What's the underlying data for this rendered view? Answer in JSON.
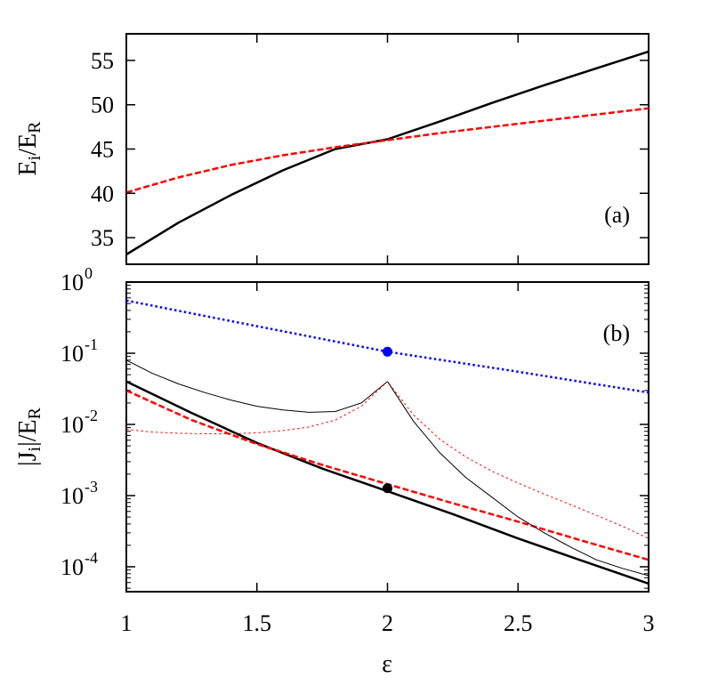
{
  "chart_data": [
    {
      "type": "line",
      "panel_label": "(a)",
      "xlabel": "ε",
      "ylabel_main": "E",
      "ylabel_sub": "i",
      "ylabel_sep": "/E",
      "ylabel_sub2": "R",
      "xlim": [
        1,
        3
      ],
      "ylim": [
        32,
        58
      ],
      "yticks": [
        35,
        40,
        45,
        50,
        55
      ],
      "xticks": [
        1,
        1.5,
        2,
        2.5,
        3
      ],
      "scale": "linear",
      "grid": false,
      "series": [
        {
          "style": "solid",
          "color": "#000000",
          "width": 2.5,
          "x": [
            1.0,
            1.2,
            1.4,
            1.6,
            1.8,
            2.0,
            2.2,
            2.4,
            2.6,
            2.8,
            3.0
          ],
          "y": [
            33.1,
            36.7,
            39.8,
            42.6,
            45.0,
            46.1,
            48.1,
            50.2,
            52.2,
            54.1,
            56.0
          ]
        },
        {
          "style": "dashed",
          "color": "#ff0000",
          "width": 2.5,
          "x": [
            1.0,
            1.2,
            1.4,
            1.6,
            1.8,
            2.0,
            2.2,
            2.4,
            2.6,
            2.8,
            3.0
          ],
          "y": [
            40.1,
            41.8,
            43.2,
            44.3,
            45.2,
            46.0,
            46.8,
            47.5,
            48.2,
            48.9,
            49.6
          ]
        }
      ]
    },
    {
      "type": "line",
      "panel_label": "(b)",
      "xlabel": "ε",
      "ylabel_main": "|J",
      "ylabel_sub": "i",
      "ylabel_sep": "|/E",
      "ylabel_sub2": "R",
      "xlim": [
        1,
        3
      ],
      "ylim_log10": [
        -4.35,
        0
      ],
      "xticks": [
        1,
        1.5,
        2,
        2.5,
        3
      ],
      "xtick_labels": [
        "1",
        "1.5",
        "2",
        "2.5",
        "3"
      ],
      "ytick_mantissa": "10",
      "ytick_exponents": [
        "0",
        "-1",
        "-2",
        "-3",
        "-4"
      ],
      "ytick_values_log10": [
        0,
        -1,
        -2,
        -3,
        -4
      ],
      "scale": "log",
      "grid": false,
      "series": [
        {
          "style": "dotted",
          "color": "#0000ff",
          "width": 2.5,
          "x": [
            1.0,
            1.5,
            2.0,
            2.5,
            3.0
          ],
          "y": [
            0.55,
            0.24,
            0.105,
            0.055,
            0.028
          ]
        },
        {
          "style": "solid",
          "color": "#000000",
          "width": 2.5,
          "x": [
            1.0,
            1.25,
            1.5,
            1.75,
            2.0,
            2.25,
            2.5,
            2.75,
            3.0
          ],
          "y": [
            0.04,
            0.0145,
            0.0055,
            0.0024,
            0.00115,
            0.00055,
            0.00025,
            0.00012,
            5.8e-05
          ]
        },
        {
          "style": "dashed",
          "color": "#ff0000",
          "width": 2.5,
          "x": [
            1.0,
            1.25,
            1.5,
            1.75,
            2.0,
            2.25,
            2.5,
            2.75,
            3.0
          ],
          "y": [
            0.03,
            0.0115,
            0.0053,
            0.0027,
            0.00145,
            0.00078,
            0.00043,
            0.00023,
            0.000125
          ]
        },
        {
          "style": "thin-solid",
          "color": "#000000",
          "width": 1,
          "x": [
            1.0,
            1.1,
            1.2,
            1.3,
            1.4,
            1.5,
            1.6,
            1.7,
            1.8,
            1.9,
            2.0,
            2.1,
            2.2,
            2.3,
            2.4,
            2.5,
            2.6,
            2.7,
            2.8,
            2.9,
            3.0
          ],
          "y": [
            0.08,
            0.052,
            0.037,
            0.028,
            0.022,
            0.018,
            0.016,
            0.0148,
            0.0152,
            0.02,
            0.04,
            0.011,
            0.004,
            0.0018,
            0.00095,
            0.0005,
            0.0003,
            0.00019,
            0.000125,
            9.5e-05,
            7.5e-05
          ]
        },
        {
          "style": "thin-dotted",
          "color": "#ff0000",
          "width": 1,
          "x": [
            1.0,
            1.1,
            1.2,
            1.3,
            1.4,
            1.5,
            1.6,
            1.7,
            1.8,
            1.9,
            2.0,
            2.1,
            2.2,
            2.3,
            2.4,
            2.5,
            2.6,
            2.7,
            2.8,
            2.9,
            3.0
          ],
          "y": [
            0.0085,
            0.0078,
            0.0075,
            0.0074,
            0.0074,
            0.0076,
            0.0082,
            0.0092,
            0.0115,
            0.018,
            0.04,
            0.0135,
            0.0062,
            0.0035,
            0.0022,
            0.0015,
            0.00105,
            0.00075,
            0.00053,
            0.00037,
            0.00025
          ]
        }
      ],
      "markers": [
        {
          "name": "blue-marker",
          "x": 2.0,
          "y": 0.105,
          "color": "#0000ff"
        },
        {
          "name": "black-marker",
          "x": 2.0,
          "y": 0.00127,
          "color": "#000000"
        }
      ]
    }
  ]
}
